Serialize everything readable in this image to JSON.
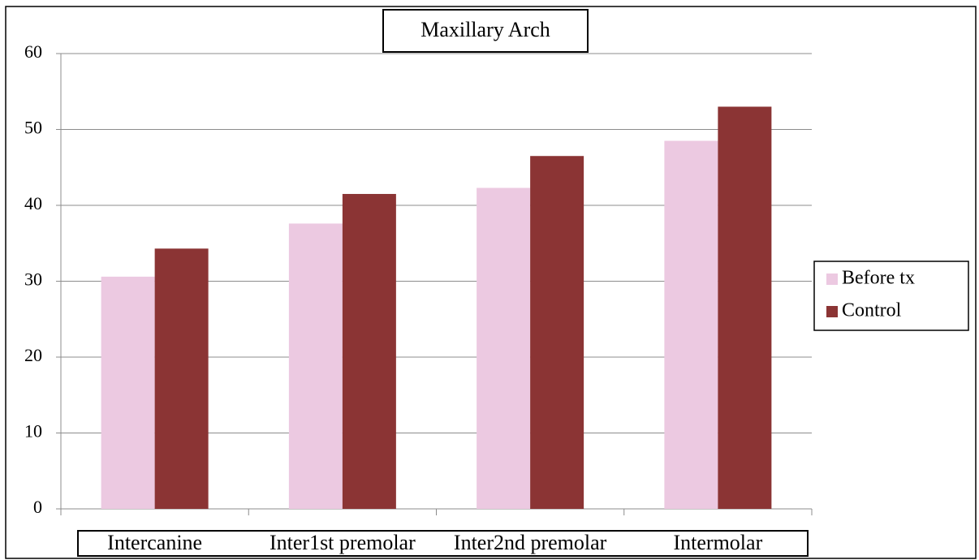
{
  "chart_data": {
    "type": "bar",
    "title": "Maxillary Arch",
    "categories": [
      "Intercanine",
      "Inter1st premolar",
      "Inter2nd premolar",
      "Intermolar"
    ],
    "series": [
      {
        "name": "Before tx",
        "color": "#ecc9e1",
        "values": [
          30.6,
          37.6,
          42.3,
          48.5
        ]
      },
      {
        "name": "Control",
        "color": "#8b3434",
        "values": [
          34.3,
          41.5,
          46.5,
          53.0
        ]
      }
    ],
    "ylim": [
      0,
      60
    ],
    "yticks": [
      0,
      10,
      20,
      30,
      40,
      50,
      60
    ],
    "grid": true,
    "legend": "right"
  }
}
